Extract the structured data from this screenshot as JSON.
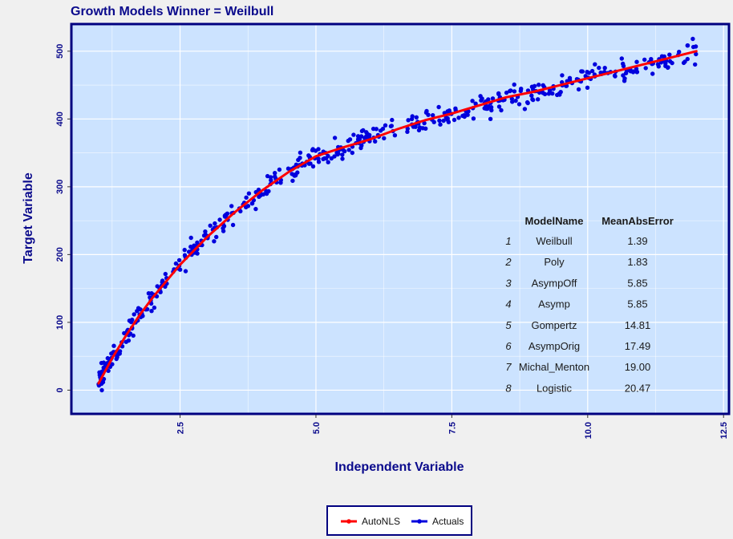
{
  "chart_data": {
    "type": "scatter",
    "title": "Growth Models Winner = Weilbull",
    "xlabel": "Independent Variable",
    "ylabel": "Target Variable",
    "xlim": [
      0.5,
      12.6
    ],
    "ylim": [
      -35,
      540
    ],
    "x_ticks": [
      2.5,
      5.0,
      7.5,
      10.0,
      12.5
    ],
    "x_tick_labels": [
      "2.5",
      "5.0",
      "7.5",
      "10.0",
      "12.5"
    ],
    "y_ticks": [
      0,
      100,
      200,
      300,
      400,
      500
    ],
    "y_tick_labels": [
      "0",
      "100",
      "200",
      "300",
      "400",
      "500"
    ],
    "grid": true,
    "legend_position": "bottom",
    "colors": {
      "panel": "#cce3ff",
      "border": "#000080",
      "fit_line": "#ff0000",
      "points": "#0000dd",
      "text": "#0a0a8c"
    },
    "series": [
      {
        "name": "AutoNLS",
        "kind": "line",
        "x": [
          1.0,
          1.25,
          1.5,
          1.75,
          2.0,
          2.5,
          3.0,
          3.5,
          4.0,
          4.5,
          5.0,
          5.5,
          6.0,
          6.5,
          7.0,
          7.5,
          8.0,
          8.5,
          9.0,
          9.5,
          10.0,
          10.5,
          11.0,
          11.5,
          12.0
        ],
        "y": [
          10,
          47,
          80,
          110,
          137,
          185,
          226,
          262,
          294,
          322,
          345,
          358,
          370,
          385,
          398,
          408,
          420,
          432,
          440,
          450,
          460,
          470,
          480,
          490,
          500
        ]
      },
      {
        "name": "Actuals",
        "kind": "points",
        "note": "approx. 500 observations scattered tightly around the fitted curve (residual spread ~ ±15)"
      }
    ]
  },
  "table": {
    "headers": [
      "ModelName",
      "MeanAbsError"
    ],
    "rows": [
      {
        "idx": "1",
        "name": "Weilbull",
        "mae": "1.39"
      },
      {
        "idx": "2",
        "name": "Poly",
        "mae": "1.83"
      },
      {
        "idx": "3",
        "name": "AsympOff",
        "mae": "5.85"
      },
      {
        "idx": "4",
        "name": "Asymp",
        "mae": "5.85"
      },
      {
        "idx": "5",
        "name": "Gompertz",
        "mae": "14.81"
      },
      {
        "idx": "6",
        "name": "AsympOrig",
        "mae": "17.49"
      },
      {
        "idx": "7",
        "name": "Michal_Menton",
        "mae": "19.00"
      },
      {
        "idx": "8",
        "name": "Logistic",
        "mae": "20.47"
      }
    ]
  }
}
